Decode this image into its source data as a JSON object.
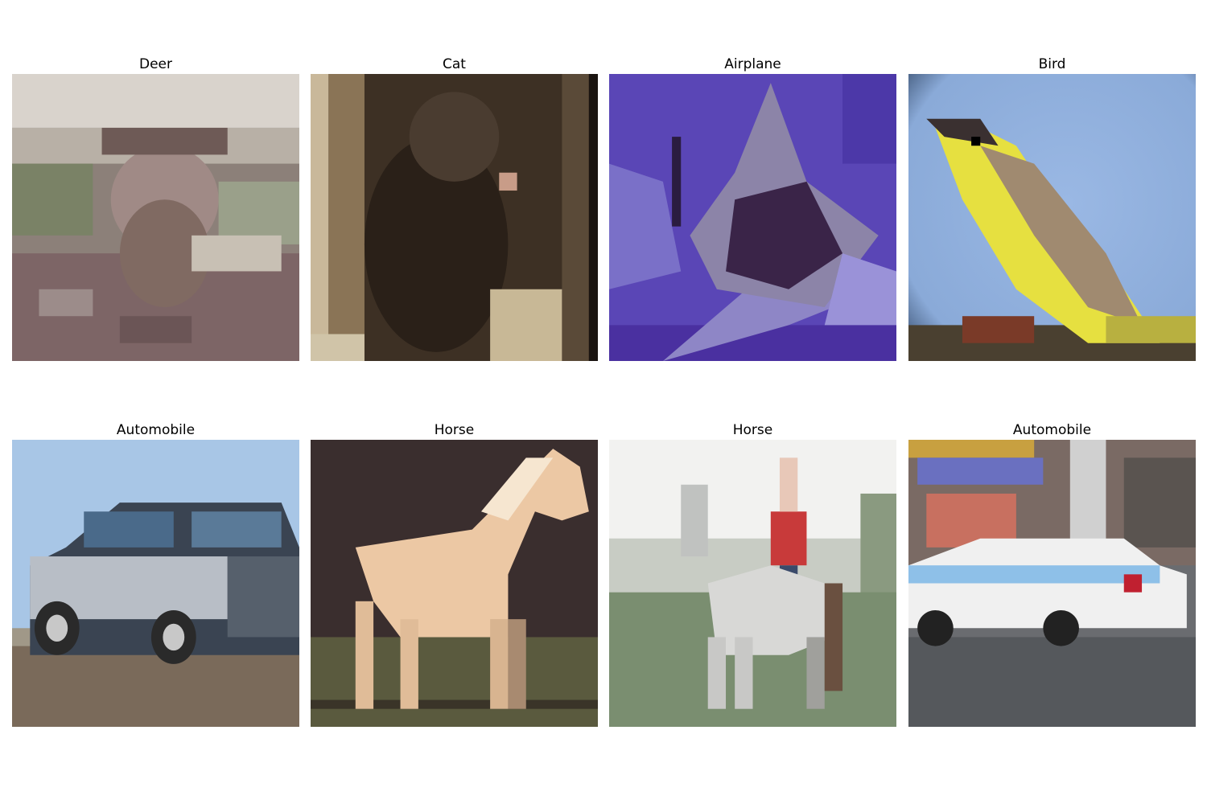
{
  "images": [
    {
      "title": "Deer",
      "subject": "deer-in-field",
      "bg": "#8a7f78"
    },
    {
      "title": "Cat",
      "subject": "cat-in-doorway",
      "bg": "#3b2f24"
    },
    {
      "title": "Airplane",
      "subject": "airplane-on-purple",
      "bg": "#5a44b8"
    },
    {
      "title": "Bird",
      "subject": "yellow-bird",
      "bg": "#8fb0de"
    },
    {
      "title": "Automobile",
      "subject": "suv-on-dirt",
      "bg": "#a9c8e6"
    },
    {
      "title": "Horse",
      "subject": "cream-horse",
      "bg": "#3a2e2e"
    },
    {
      "title": "Horse",
      "subject": "horse-with-rider",
      "bg": "#c8ccc6"
    },
    {
      "title": "Automobile",
      "subject": "police-car",
      "bg": "#6a6c70"
    }
  ]
}
